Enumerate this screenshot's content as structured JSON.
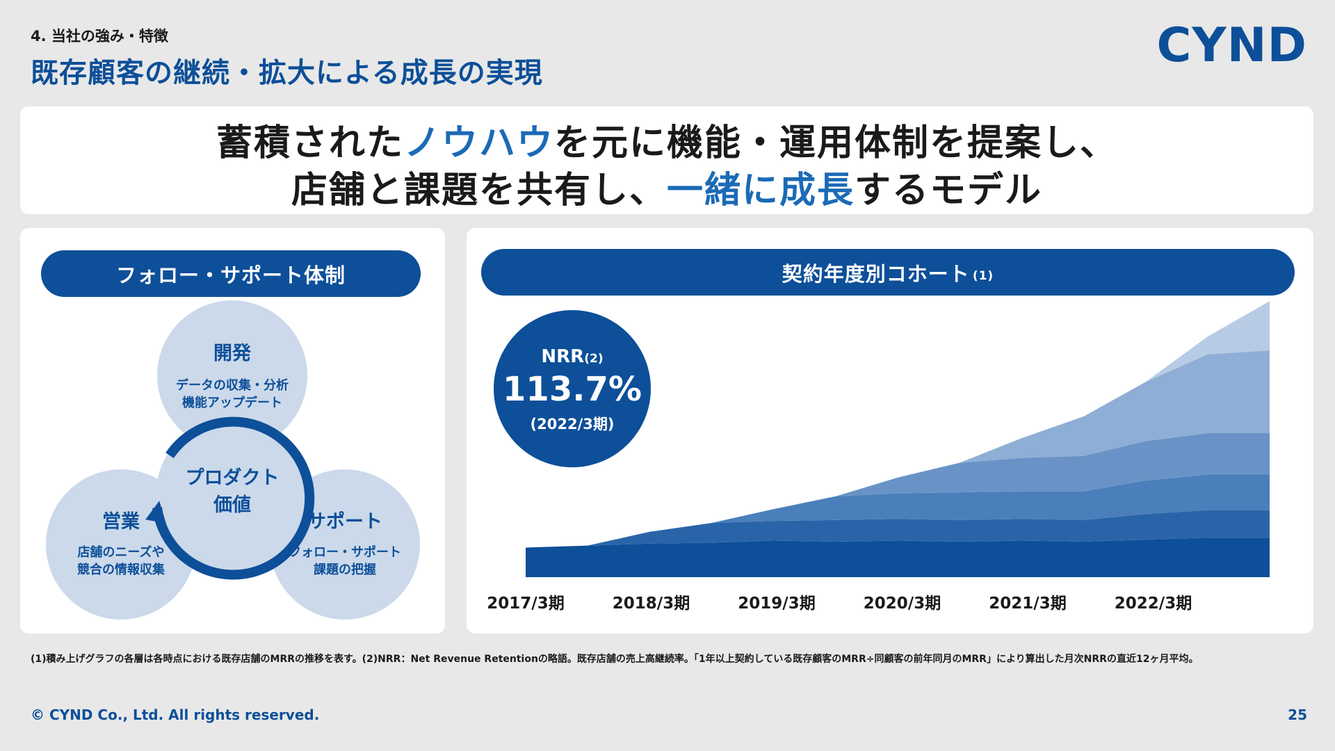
{
  "header": {
    "section_label": "4. 当社の強み・特徴",
    "title": "既存顧客の継続・拡大による成長の実現",
    "logo_text": "CYND"
  },
  "headline": {
    "line1_a": "蓄積された",
    "line1_b": "ノウハウ",
    "line1_c": "を元に機能・運用体制を提案し、",
    "line2_a": "店舗と課題を共有し、",
    "line2_b": "一緒に成長",
    "line2_c": "するモデル"
  },
  "left_panel": {
    "pill_label": "フォロー・サポート体制",
    "top_circle": {
      "title": "開発",
      "line1": "データの収集・分析",
      "line2": "機能アップデート"
    },
    "left_circle": {
      "title": "営業",
      "line1": "店舗のニーズや",
      "line2": "競合の情報収集"
    },
    "right_circle": {
      "title": "サポート",
      "line1": "フォロー・サポート",
      "line2": "課題の把握"
    },
    "center_line1": "プロダクト",
    "center_line2": "価値"
  },
  "right_panel": {
    "pill_label": "契約年度別コホート",
    "pill_note": "(1)",
    "nrr_label": "NRR",
    "nrr_note": "(2)",
    "nrr_value": "113.7%",
    "nrr_period": "(2022/3期)"
  },
  "chart_data": {
    "type": "area",
    "stacked": true,
    "x_tick_labels": [
      "2017/3期",
      "2018/3期",
      "2019/3期",
      "2020/3期",
      "2021/3期",
      "2022/3期"
    ],
    "y_axis_shown": false,
    "grid": false,
    "legend": "none",
    "x": [
      0,
      1,
      2,
      3,
      4,
      5,
      6,
      7,
      8,
      9,
      10,
      11,
      12
    ],
    "series": [
      {
        "color": "#0d4f99",
        "values": [
          30,
          32,
          34,
          35,
          37,
          36,
          37,
          36,
          37,
          36,
          38,
          40,
          40
        ]
      },
      {
        "color": "#2a64a8",
        "values": [
          0,
          0,
          12,
          20,
          20,
          22,
          22,
          22,
          22,
          22,
          26,
          28,
          28
        ]
      },
      {
        "color": "#4a7fbb",
        "values": [
          0,
          0,
          0,
          0,
          12,
          24,
          26,
          28,
          28,
          29,
          34,
          36,
          36
        ]
      },
      {
        "color": "#6993c6",
        "values": [
          0,
          0,
          0,
          0,
          0,
          0,
          16,
          30,
          34,
          36,
          40,
          42,
          42
        ]
      },
      {
        "color": "#8eaed5",
        "values": [
          0,
          0,
          0,
          0,
          0,
          0,
          0,
          0,
          20,
          40,
          60,
          80,
          84
        ]
      },
      {
        "color": "#b7cbe4",
        "values": [
          0,
          0,
          0,
          0,
          0,
          0,
          0,
          0,
          0,
          0,
          0,
          18,
          50
        ]
      }
    ]
  },
  "footnote": "(1)積み上げグラフの各層は各時点における既存店舗のMRRの推移を表す。(2)NRR：Net Revenue Retentionの略語。既存店舗の売上高継続率。「1年以上契約している既存顧客のMRR÷同顧客の前年同月のMRR」により算出した月次NRRの直近12ヶ月平均。",
  "footer": {
    "copyright": "© CYND Co., Ltd. All rights reserved.",
    "page_number": "25"
  },
  "colors": {
    "brand": "#0d4f99",
    "accent_text": "#1b6ab6",
    "circle_fill": "#cbd9ea",
    "background": "#e8e8e8"
  }
}
